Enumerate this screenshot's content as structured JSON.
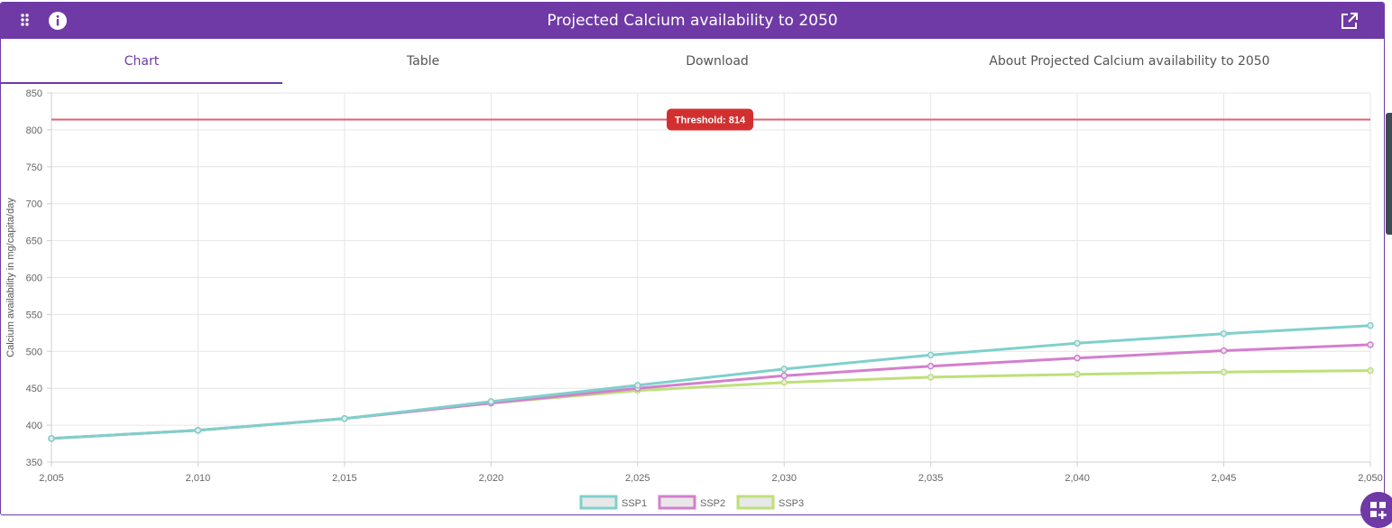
{
  "header": {
    "title": "Projected Calcium availability to 2050",
    "icons": [
      "apps-grid-icon",
      "info-icon",
      "open-external-icon"
    ]
  },
  "tabs": [
    {
      "label": "Chart",
      "active": true
    },
    {
      "label": "Table",
      "active": false
    },
    {
      "label": "Download",
      "active": false
    },
    {
      "label": "About Projected Calcium availability to 2050",
      "active": false
    }
  ],
  "chart_data": {
    "type": "line",
    "title": "",
    "xlabel": "",
    "ylabel": "Calcium availability in mg/capita/day",
    "xlim": [
      2005,
      2050
    ],
    "ylim": [
      350,
      850
    ],
    "x_ticks": [
      "2,005",
      "2,010",
      "2,015",
      "2,020",
      "2,025",
      "2,030",
      "2,035",
      "2,040",
      "2,045",
      "2,050"
    ],
    "y_ticks": [
      "350",
      "400",
      "450",
      "500",
      "550",
      "600",
      "650",
      "700",
      "750",
      "800",
      "850"
    ],
    "grid": true,
    "legend_position": "bottom",
    "x": [
      2005,
      2010,
      2015,
      2020,
      2025,
      2030,
      2035,
      2040,
      2045,
      2050
    ],
    "series": [
      {
        "name": "SSP1",
        "color": "#7fd0cc",
        "values": [
          382,
          393,
          409,
          432,
          454,
          476,
          495,
          511,
          524,
          535
        ]
      },
      {
        "name": "SSP2",
        "color": "#d37fce",
        "values": [
          382,
          393,
          409,
          430,
          450,
          467,
          480,
          491,
          501,
          509
        ]
      },
      {
        "name": "SSP3",
        "color": "#bde07a",
        "values": [
          382,
          393,
          409,
          430,
          447,
          458,
          465,
          469,
          472,
          474
        ]
      }
    ],
    "threshold": {
      "value": 814,
      "label": "Threshold: 814",
      "color": "#e06070",
      "badge_color": "#d23030"
    }
  }
}
